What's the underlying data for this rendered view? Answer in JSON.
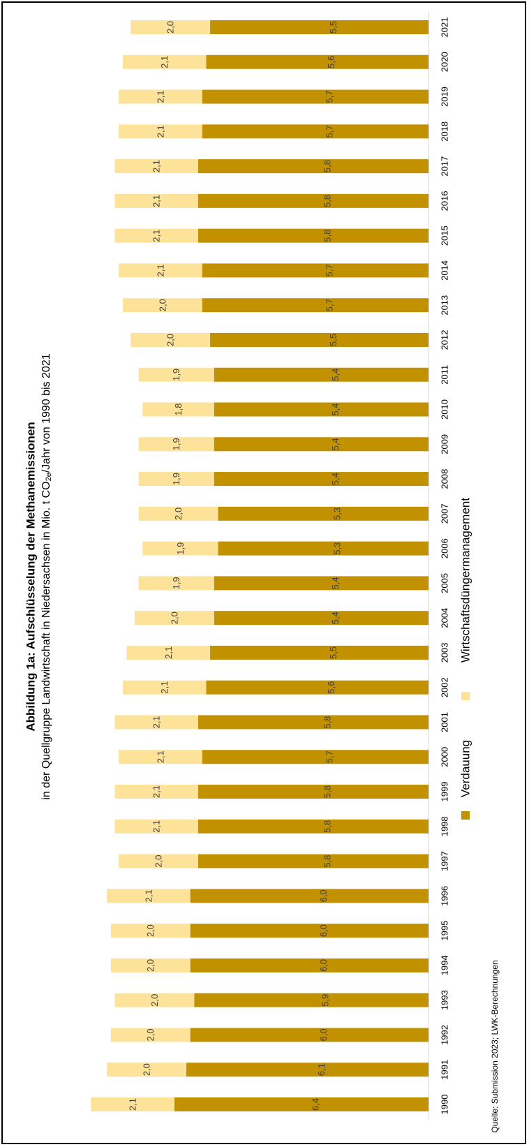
{
  "colors": {
    "verdauung": "#C29100",
    "wirtschaftsduenger": "#FDE29A",
    "frame": "#000000"
  },
  "chart_data": {
    "type": "bar",
    "orientation": "horizontal-stacked",
    "rotated": "90deg-counterclockwise",
    "title": "Abbildung 1a: Aufschlüsselung der Methanemissionen",
    "subtitle_parts": {
      "main": "in der Quellgruppe Landwirtschaft in Niedersachsen in Mio. t CO",
      "sub": "2e",
      "tail": "/Jahr von 1990 bis 2021"
    },
    "categories": [
      "1990",
      "1991",
      "1992",
      "1993",
      "1994",
      "1995",
      "1996",
      "1997",
      "1998",
      "1999",
      "2000",
      "2001",
      "2002",
      "2003",
      "2004",
      "2005",
      "2006",
      "2007",
      "2008",
      "2009",
      "2010",
      "2011",
      "2012",
      "2013",
      "2014",
      "2015",
      "2016",
      "2017",
      "2018",
      "2019",
      "2020",
      "2021"
    ],
    "series": [
      {
        "name": "Verdauung",
        "values": [
          6.4,
          6.1,
          6.0,
          5.9,
          6.0,
          6.0,
          6.0,
          5.8,
          5.8,
          5.8,
          5.7,
          5.8,
          5.6,
          5.5,
          5.4,
          5.4,
          5.3,
          5.3,
          5.4,
          5.4,
          5.4,
          5.4,
          5.5,
          5.7,
          5.7,
          5.8,
          5.8,
          5.8,
          5.7,
          5.7,
          5.6,
          5.5
        ],
        "labels": [
          "6,4",
          "6,1",
          "6,0",
          "5,9",
          "6,0",
          "6,0",
          "6,0",
          "5,8",
          "5,8",
          "5,8",
          "5,7",
          "5,8",
          "5,6",
          "5,5",
          "5,4",
          "5,4",
          "5,3",
          "5,3",
          "5,4",
          "5,4",
          "5,4",
          "5,4",
          "5,5",
          "5,7",
          "5,7",
          "5,8",
          "5,8",
          "5,8",
          "5,7",
          "5,7",
          "5,6",
          "5,5"
        ]
      },
      {
        "name": "Wirtschaftsdüngermanagement",
        "values": [
          2.1,
          2.0,
          2.0,
          2.0,
          2.0,
          2.0,
          2.1,
          2.0,
          2.1,
          2.1,
          2.1,
          2.1,
          2.1,
          2.1,
          2.0,
          1.9,
          1.9,
          2.0,
          1.9,
          1.9,
          1.8,
          1.9,
          2.0,
          2.0,
          2.1,
          2.1,
          2.1,
          2.1,
          2.1,
          2.1,
          2.1,
          2.0
        ],
        "labels": [
          "2,1",
          "2,0",
          "2,0",
          "2,0",
          "2,0",
          "2,0",
          "2,1",
          "2,0",
          "2,1",
          "2,1",
          "2,1",
          "2,1",
          "2,1",
          "2,1",
          "2,0",
          "1,9",
          "1,9",
          "2,0",
          "1,9",
          "1,9",
          "1,8",
          "1,9",
          "2,0",
          "2,0",
          "2,1",
          "2,1",
          "2,1",
          "2,1",
          "2,1",
          "2,1",
          "2,1",
          "2,0"
        ]
      }
    ],
    "legend_position": "bottom",
    "grid": false,
    "source": "Quelle: Submission 2023; LWK-Berechnungen"
  }
}
